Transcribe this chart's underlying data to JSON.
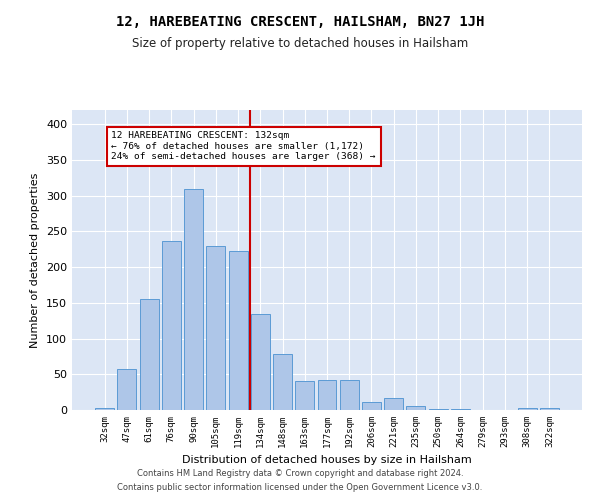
{
  "title": "12, HAREBEATING CRESCENT, HAILSHAM, BN27 1JH",
  "subtitle": "Size of property relative to detached houses in Hailsham",
  "xlabel": "Distribution of detached houses by size in Hailsham",
  "ylabel": "Number of detached properties",
  "categories": [
    "32sqm",
    "47sqm",
    "61sqm",
    "76sqm",
    "90sqm",
    "105sqm",
    "119sqm",
    "134sqm",
    "148sqm",
    "163sqm",
    "177sqm",
    "192sqm",
    "206sqm",
    "221sqm",
    "235sqm",
    "250sqm",
    "264sqm",
    "279sqm",
    "293sqm",
    "308sqm",
    "322sqm"
  ],
  "values": [
    3,
    57,
    155,
    236,
    309,
    230,
    222,
    135,
    78,
    40,
    42,
    42,
    11,
    17,
    6,
    2,
    2,
    0,
    0,
    3,
    3
  ],
  "bar_color": "#aec6e8",
  "bar_edge_color": "#5b9bd5",
  "bg_color": "#dce6f5",
  "annotation_text_line1": "12 HAREBEATING CRESCENT: 132sqm",
  "annotation_text_line2": "← 76% of detached houses are smaller (1,172)",
  "annotation_text_line3": "24% of semi-detached houses are larger (368) →",
  "annotation_box_color": "#cc0000",
  "vline_color": "#cc0000",
  "vline_x_index": 6.55,
  "ylim": [
    0,
    420
  ],
  "yticks": [
    0,
    50,
    100,
    150,
    200,
    250,
    300,
    350,
    400
  ],
  "footer1": "Contains HM Land Registry data © Crown copyright and database right 2024.",
  "footer2": "Contains public sector information licensed under the Open Government Licence v3.0."
}
